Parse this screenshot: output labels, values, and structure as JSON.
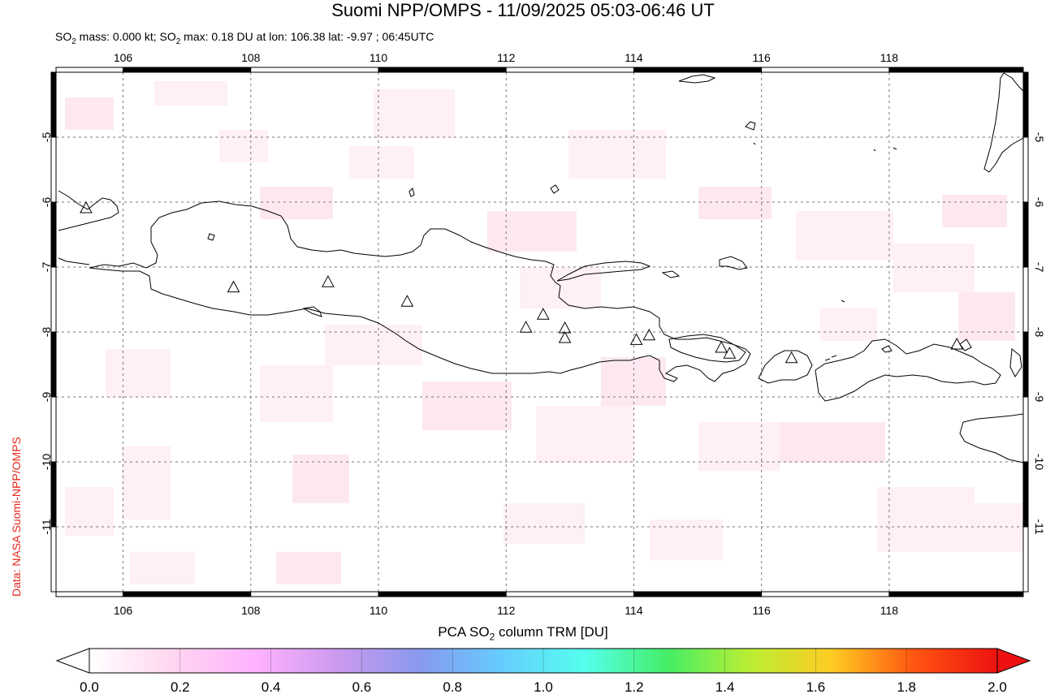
{
  "title": "Suomi NPP/OMPS - 11/09/2025 05:03-06:46 UT",
  "subtitle": {
    "prefix": "SO",
    "sub": "2",
    "mid": " mass: 0.000 kt; SO",
    "sub2": "2",
    "suffix": " max: 0.18 DU at lon: 106.38 lat: -9.97 ; 06:45UTC"
  },
  "side_credit": "Data: NASA Suomi-NPP/OMPS",
  "map": {
    "lon_ticks": [
      "106",
      "108",
      "110",
      "112",
      "114",
      "116",
      "118"
    ],
    "lon_values": [
      106,
      108,
      110,
      112,
      114,
      116,
      118
    ],
    "lat_ticks": [
      "-5",
      "-6",
      "-7",
      "-8",
      "-9",
      "-10",
      "-11"
    ],
    "lat_values": [
      -5,
      -6,
      -7,
      -8,
      -9,
      -10,
      -11
    ],
    "lon_range": [
      104.95,
      120.1
    ],
    "lat_range": [
      -12.0,
      -4.0
    ],
    "volcanoes": [
      {
        "lon": 105.42,
        "lat": -6.1
      },
      {
        "lon": 107.73,
        "lat": -7.32
      },
      {
        "lon": 109.21,
        "lat": -7.24
      },
      {
        "lon": 110.45,
        "lat": -7.54
      },
      {
        "lon": 112.31,
        "lat": -7.94
      },
      {
        "lon": 112.58,
        "lat": -7.74
      },
      {
        "lon": 112.92,
        "lat": -7.95
      },
      {
        "lon": 112.92,
        "lat": -8.1
      },
      {
        "lon": 114.04,
        "lat": -8.13
      },
      {
        "lon": 114.24,
        "lat": -8.06
      },
      {
        "lon": 115.37,
        "lat": -8.25
      },
      {
        "lon": 115.5,
        "lat": -8.34
      },
      {
        "lon": 116.47,
        "lat": -8.41
      },
      {
        "lon": 119.06,
        "lat": -8.2
      }
    ]
  },
  "colorbar": {
    "label_prefix": "PCA SO",
    "label_sub": "2",
    "label_suffix": " column TRM [DU]",
    "ticks": [
      "0.0",
      "0.2",
      "0.4",
      "0.6",
      "0.8",
      "1.0",
      "1.2",
      "1.4",
      "1.6",
      "1.8",
      "2.0"
    ],
    "colors": [
      "#ffffff",
      "#ffd6f0",
      "#ffb3ff",
      "#cc99ee",
      "#8899ee",
      "#66ccff",
      "#55ffee",
      "#44ee66",
      "#bbee33",
      "#ffcc22",
      "#ff5511",
      "#ee1111"
    ]
  }
}
